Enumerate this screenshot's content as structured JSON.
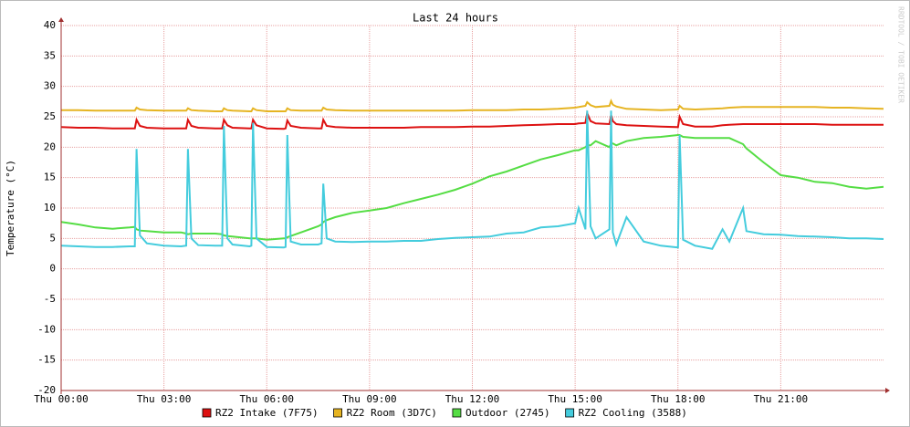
{
  "chart_data": {
    "type": "line",
    "title": "Last 24 hours",
    "y_label": "Temperature (°C)",
    "watermark": "RRDTOOL / TOBI OETIKER",
    "grid": true,
    "xlim": [
      0,
      24
    ],
    "xticks": [
      {
        "value": 0,
        "label": "Thu 00:00"
      },
      {
        "value": 3,
        "label": "Thu 03:00"
      },
      {
        "value": 6,
        "label": "Thu 06:00"
      },
      {
        "value": 9,
        "label": "Thu 09:00"
      },
      {
        "value": 12,
        "label": "Thu 12:00"
      },
      {
        "value": 15,
        "label": "Thu 15:00"
      },
      {
        "value": 18,
        "label": "Thu 18:00"
      },
      {
        "value": 21,
        "label": "Thu 21:00"
      }
    ],
    "ylim": [
      -20,
      40
    ],
    "yticks": [
      -20,
      -15,
      -10,
      -5,
      0,
      5,
      10,
      15,
      20,
      25,
      30,
      35,
      40
    ],
    "x": [
      0,
      0.5,
      1,
      1.5,
      2,
      2.15,
      2.2,
      2.3,
      2.5,
      3,
      3.5,
      3.65,
      3.7,
      3.8,
      4,
      4.5,
      4.7,
      4.75,
      4.85,
      5,
      5.5,
      5.55,
      5.6,
      5.7,
      6,
      6.5,
      6.55,
      6.6,
      6.7,
      7,
      7.5,
      7.6,
      7.65,
      7.75,
      8,
      8.5,
      9,
      9.5,
      10,
      10.5,
      11,
      11.5,
      12,
      12.5,
      13,
      13.5,
      14,
      14.5,
      15,
      15.1,
      15.3,
      15.35,
      15.45,
      15.6,
      16,
      16.05,
      16.1,
      16.2,
      16.5,
      17,
      17.5,
      18,
      18.05,
      18.15,
      18.5,
      19,
      19.3,
      19.5,
      19.9,
      20,
      20.5,
      21,
      21.5,
      22,
      22.5,
      23,
      23.5,
      24
    ],
    "series": [
      {
        "name": "RZ2 Intake (7F75)",
        "color": "#dd1111",
        "values": [
          23.3,
          23.2,
          23.2,
          23.1,
          23.1,
          23.1,
          24.5,
          23.5,
          23.2,
          23.1,
          23.1,
          23.1,
          24.5,
          23.5,
          23.2,
          23.1,
          23.1,
          24.5,
          23.6,
          23.2,
          23.1,
          23.1,
          24.5,
          23.6,
          23.1,
          23,
          23.1,
          24.4,
          23.5,
          23.2,
          23.1,
          23.1,
          24.5,
          23.5,
          23.3,
          23.2,
          23.2,
          23.2,
          23.2,
          23.3,
          23.3,
          23.3,
          23.4,
          23.4,
          23.5,
          23.6,
          23.7,
          23.8,
          23.8,
          23.9,
          24,
          25.6,
          24.3,
          23.9,
          23.8,
          25.3,
          24.3,
          23.8,
          23.6,
          23.5,
          23.4,
          23.3,
          25,
          23.8,
          23.4,
          23.4,
          23.6,
          23.7,
          23.8,
          23.8,
          23.8,
          23.8,
          23.8,
          23.8,
          23.7,
          23.7,
          23.7,
          23.7
        ]
      },
      {
        "name": "RZ2 Room (3D7C)",
        "color": "#e6b422",
        "values": [
          26.1,
          26.1,
          26,
          26,
          26,
          26,
          26.5,
          26.2,
          26.1,
          26,
          26,
          26,
          26.4,
          26.1,
          26,
          25.9,
          25.9,
          26.4,
          26.1,
          26,
          25.9,
          25.9,
          26.4,
          26.1,
          25.9,
          25.9,
          25.9,
          26.4,
          26.1,
          26,
          26,
          26,
          26.5,
          26.2,
          26.1,
          26,
          26,
          26,
          26,
          26,
          26,
          26,
          26.1,
          26.1,
          26.1,
          26.2,
          26.2,
          26.3,
          26.5,
          26.6,
          26.8,
          27.4,
          26.9,
          26.6,
          26.8,
          27.6,
          27,
          26.7,
          26.3,
          26.2,
          26.1,
          26.2,
          26.8,
          26.3,
          26.2,
          26.3,
          26.4,
          26.5,
          26.6,
          26.6,
          26.6,
          26.6,
          26.6,
          26.6,
          26.5,
          26.5,
          26.4,
          26.3
        ]
      },
      {
        "name": "Outdoor (2745)",
        "color": "#55dd44",
        "values": [
          7.7,
          7.3,
          6.8,
          6.6,
          6.8,
          6.9,
          6.5,
          6.3,
          6.2,
          6,
          6,
          5.8,
          5.7,
          5.8,
          5.8,
          5.8,
          5.7,
          5.5,
          5.4,
          5.3,
          5,
          5,
          5,
          5,
          4.8,
          5,
          5,
          5.2,
          5.4,
          6,
          7,
          7.3,
          7.7,
          8,
          8.5,
          9.2,
          9.6,
          10,
          10.8,
          11.5,
          12.2,
          13,
          14,
          15.2,
          16,
          17,
          18,
          18.7,
          19.5,
          19.5,
          20,
          20.3,
          20.3,
          21,
          20,
          20.6,
          20.6,
          20.3,
          21,
          21.5,
          21.7,
          22,
          22,
          21.7,
          21.5,
          21.5,
          21.5,
          21.5,
          20.5,
          19.8,
          17.5,
          15.4,
          15,
          14.3,
          14.1,
          13.5,
          13.2,
          13.5
        ]
      },
      {
        "name": "RZ2 Cooling (3588)",
        "color": "#44ccdd",
        "values": [
          3.8,
          3.7,
          3.6,
          3.6,
          3.7,
          3.7,
          19.7,
          5.5,
          4.2,
          3.8,
          3.7,
          3.8,
          19.7,
          5,
          3.9,
          3.8,
          3.8,
          23.5,
          5,
          4,
          3.7,
          3.8,
          24,
          5,
          3.6,
          3.5,
          3.6,
          22,
          4.5,
          4,
          4,
          4.2,
          14,
          5,
          4.5,
          4.4,
          4.5,
          4.5,
          4.6,
          4.6,
          4.9,
          5.1,
          5.2,
          5.3,
          5.8,
          6,
          6.8,
          7,
          7.5,
          10,
          6.5,
          26,
          7,
          5,
          6.5,
          26,
          6,
          4,
          8.5,
          4.5,
          3.8,
          3.5,
          22,
          4.8,
          3.8,
          3.3,
          6.5,
          4.5,
          10,
          6.2,
          5.7,
          5.6,
          5.4,
          5.3,
          5.2,
          5,
          5,
          4.9
        ]
      }
    ]
  }
}
